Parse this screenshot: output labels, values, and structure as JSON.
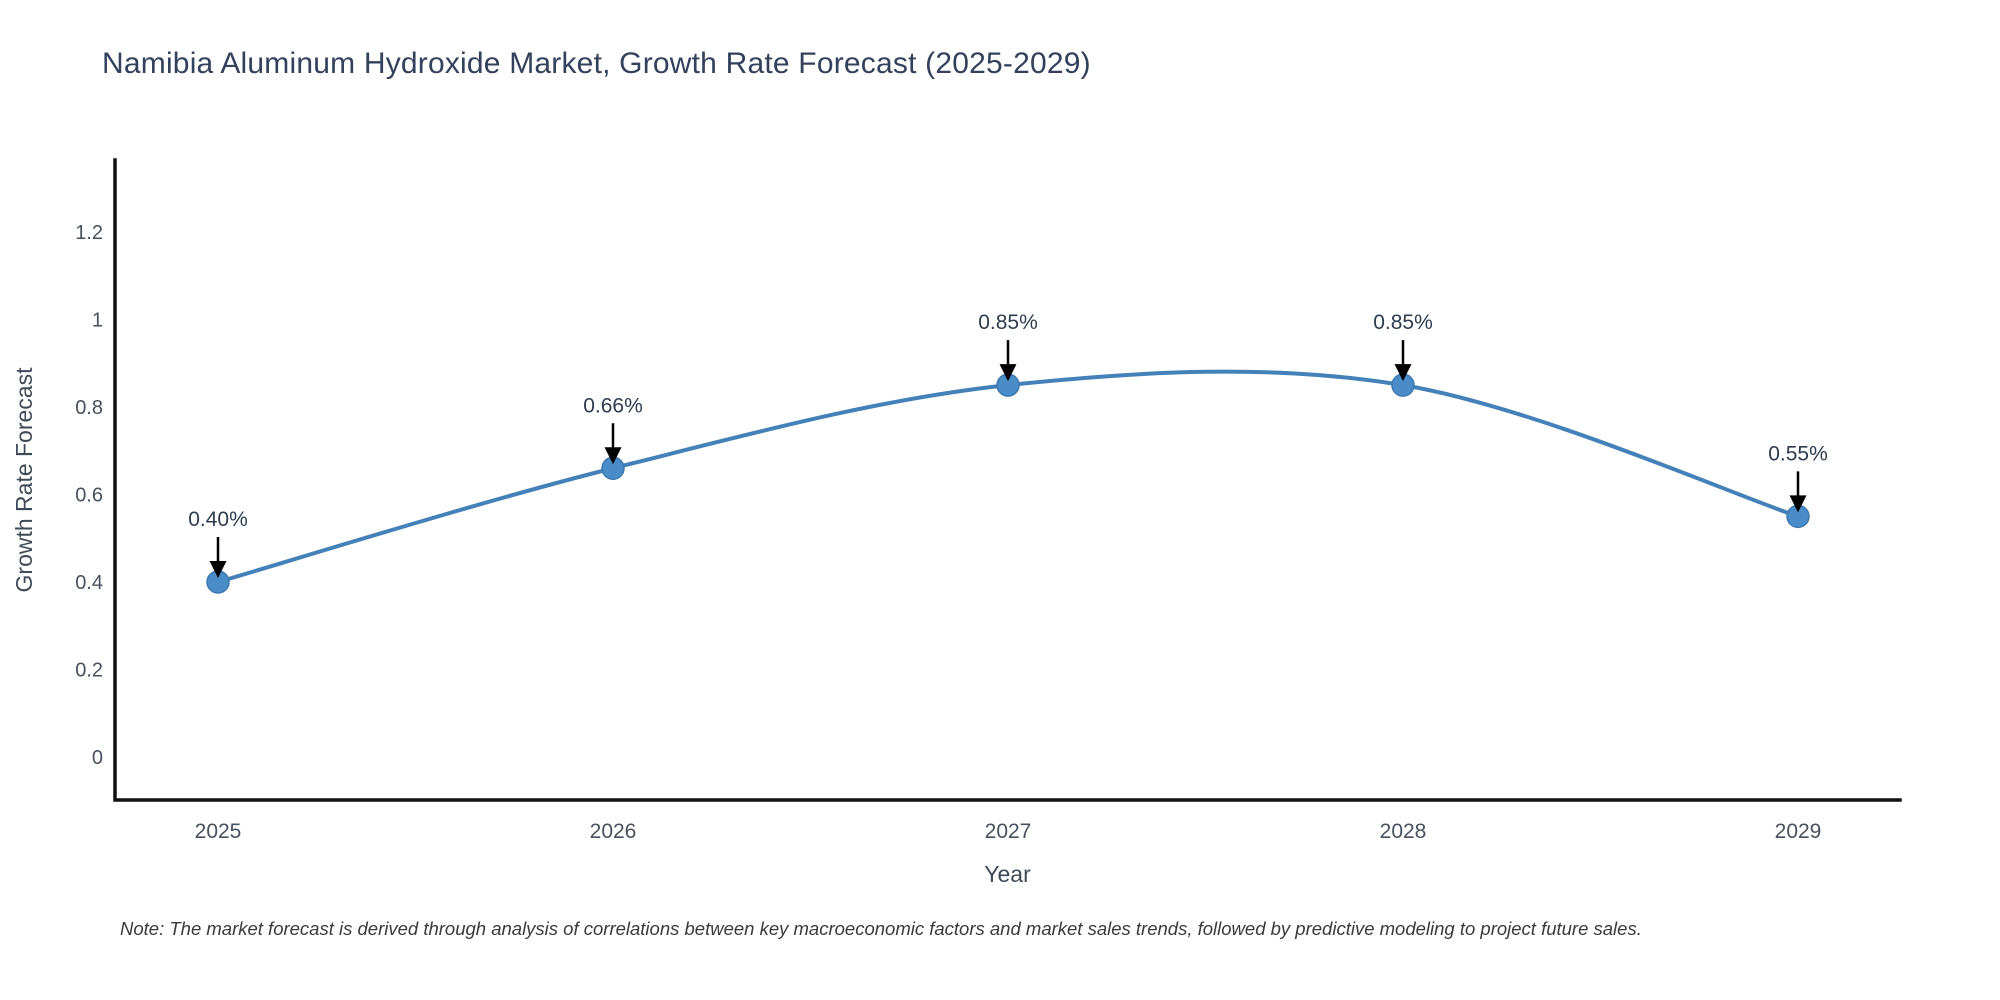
{
  "title": {
    "text": "Namibia Aluminum Hydroxide Market, Growth Rate Forecast (2025-2029)"
  },
  "note": {
    "text": "Note: The market forecast is derived through analysis of correlations between key macroeconomic factors and market sales trends, followed by predictive modeling to project future sales."
  },
  "chart_data": {
    "type": "line",
    "title": "Namibia Aluminum Hydroxide Market, Growth Rate Forecast (2025-2029)",
    "categories": [
      "2025",
      "2026",
      "2027",
      "2028",
      "2029"
    ],
    "values": [
      0.4,
      0.66,
      0.85,
      0.85,
      0.55
    ],
    "point_labels": [
      "0.40%",
      "0.66%",
      "0.85%",
      "0.85%",
      "0.55%"
    ],
    "series": [
      {
        "name": "Growth Rate Forecast",
        "values": [
          0.4,
          0.66,
          0.85,
          0.85,
          0.55
        ]
      }
    ],
    "xlabel": "Year",
    "ylabel": "Growth Rate Forecast",
    "ytick_labels": [
      "0",
      "0.2",
      "0.4",
      "0.6",
      "0.8",
      "1",
      "1.2"
    ],
    "ylim": [
      -0.1,
      1.37
    ],
    "grid": false,
    "legend": "none",
    "line_shape": "spline",
    "markers": true,
    "annotations_have_arrows": true,
    "colors": {
      "line": "#4381b8",
      "marker_fill": "#4a8cc8",
      "marker_edge": "#3c79b0",
      "axis_line": "#111111",
      "tick_text": "#47525e",
      "axis_title_text": "#3f4a57",
      "annotation_text": "#2e3c50",
      "arrow": "#000000",
      "title_text": "#33415c",
      "note_text": "#3a3a3a",
      "background": "#ffffff"
    }
  }
}
